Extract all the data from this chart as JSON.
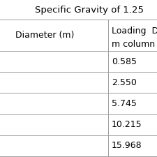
{
  "title": "Specific Gravity of 1.25",
  "col1_header": "Diameter (m)",
  "col2_header_line1": "Loading  Densi",
  "col2_header_line2": "m column diam",
  "col1_values": [
    "",
    "",
    "",
    "",
    ""
  ],
  "col2_values": [
    "0.585",
    "2.550",
    "5.745",
    "10.215",
    "15.968"
  ],
  "bg_color": "#ffffff",
  "line_color": "#a0a0a0",
  "text_color": "#000000",
  "title_fontsize": 9.5,
  "cell_fontsize": 9,
  "header_fontsize": 9
}
